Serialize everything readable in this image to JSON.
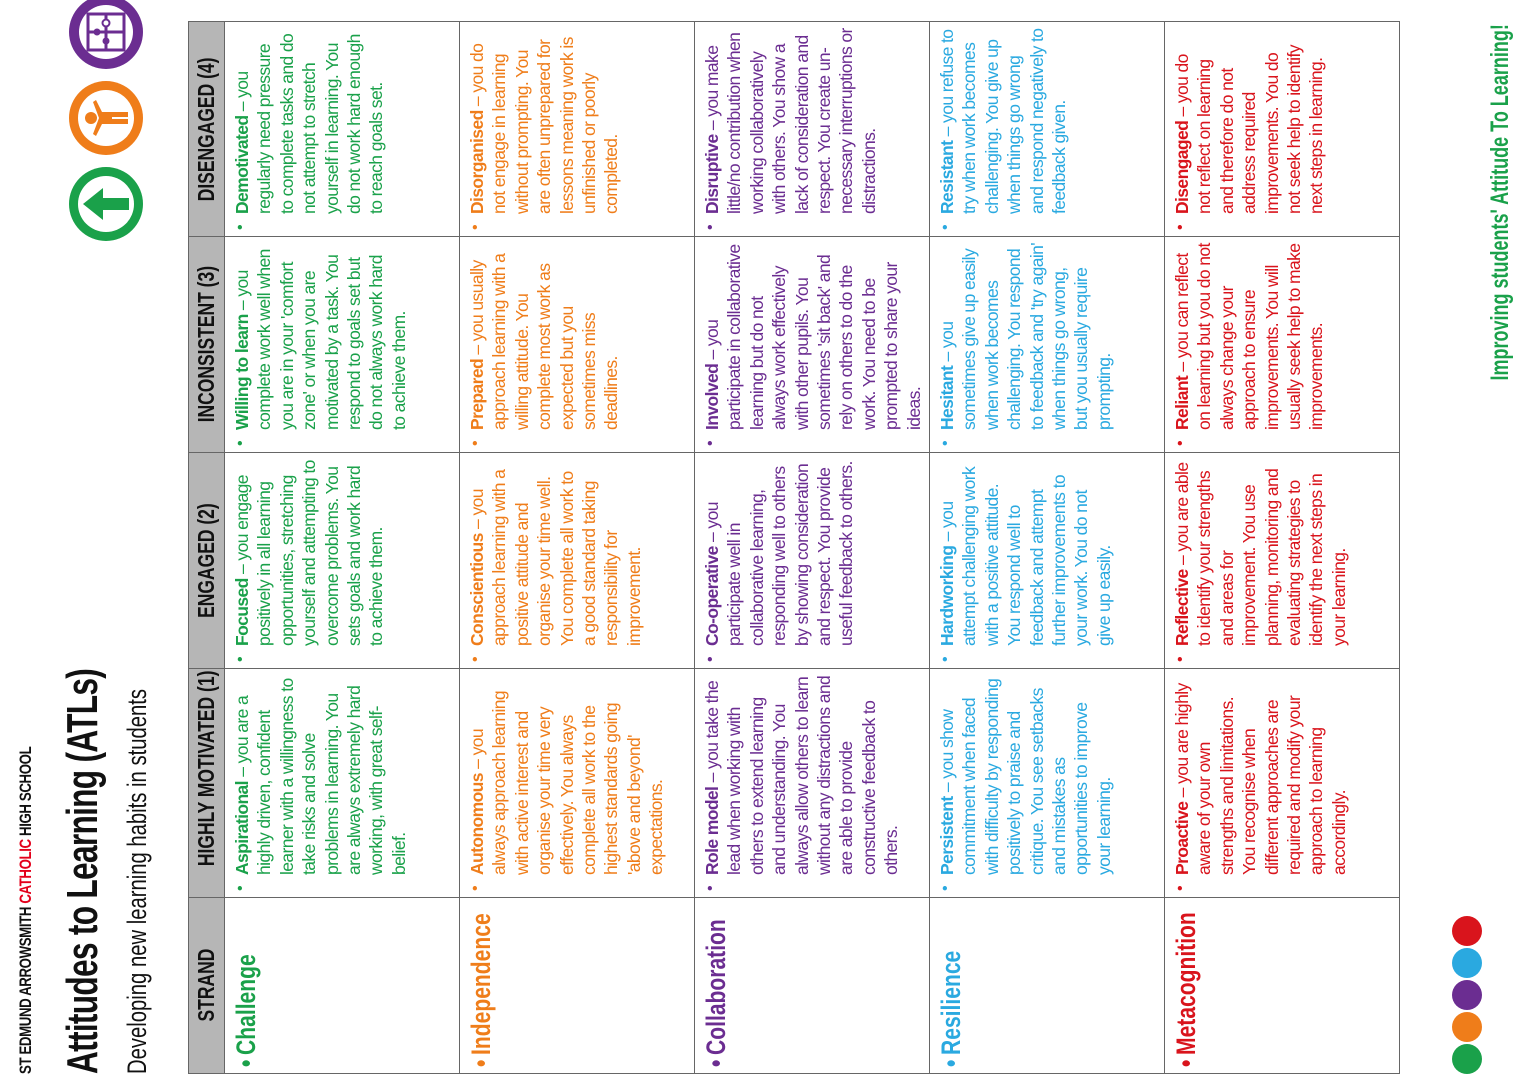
{
  "header": {
    "school_prefix": "ST EDMUND ARROWSMITH ",
    "school_accent": "CATHOLIC",
    "school_suffix": " HIGH SCHOOL",
    "title": "Attitudes to Learning (ATLs)",
    "subtitle": "Developing new learning habits in students"
  },
  "columns": [
    "STRAND",
    "HIGHLY MOTIVATED (1)",
    "ENGAGED (2)",
    "INCONSISTENT (3)",
    "DISENGAGED (4)"
  ],
  "bullet": "•",
  "dash": " – ",
  "rows": [
    {
      "strand": "Challenge",
      "cells": [
        {
          "term": "Aspirational",
          "text": "you are a highly driven, confident learner with a willingness to take risks and solve problems in learning. You are always extremely hard working, with great self-belief."
        },
        {
          "term": "Focused",
          "text": "you engage positively in all learning opportunities, stretching yourself and attempting to overcome problems. You sets goals and work hard to achieve them."
        },
        {
          "term": "Willing to learn",
          "text": "you complete work well when you are in your 'comfort zone' or when you are motivated by a task. You respond to goals set but do not always work hard to achieve them."
        },
        {
          "term": "Demotivated",
          "text": "you regularly need pressure to complete tasks and do not attempt to stretch yourself in learning. You do not work hard enough to reach goals set."
        }
      ]
    },
    {
      "strand": "Independence",
      "cells": [
        {
          "term": "Autonomous",
          "text": "you always approach learning with active interest and organise your time very effectively. You always complete all work to the highest standards going 'above and beyond' expectations."
        },
        {
          "term": "Conscientious",
          "text": "you approach learning with a positive attitude and organise your time well. You complete all work to a good standard taking responsibility for improvement."
        },
        {
          "term": "Prepared",
          "text": "you usually approach learning with a willing attitude. You complete most work as expected but you sometimes miss deadlines."
        },
        {
          "term": "Disorganised",
          "text": "you do not engage in learning without prompting. You are often unprepared for lessons meaning work is unfinished or poorly completed."
        }
      ]
    },
    {
      "strand": "Collaboration",
      "cells": [
        {
          "term": "Role model",
          "text": "you take the lead when working with others to extend learning and understanding. You always allow others to learn without any distractions and are able to provide constructive feedback to others."
        },
        {
          "term": "Co-operative",
          "text": "you participate well in collaborative learning, responding well to others by showing consideration and respect. You provide useful feedback to others."
        },
        {
          "term": "Involved",
          "text": "you participate in collaborative learning but do not always work effectively with other pupils. You sometimes 'sit back' and rely on others to do the work. You need to be prompted to share your ideas."
        },
        {
          "term": "Disruptive",
          "text": "you make little/no contribution when working collaboratively with others. You show a lack of consideration and respect. You create un-necessary interruptions or distractions."
        }
      ]
    },
    {
      "strand": "Resilience",
      "cells": [
        {
          "term": "Persistent",
          "text": "you show commitment when faced with difficulty by responding positively to praise and critique. You see setbacks and mistakes as opportunities to improve your learning."
        },
        {
          "term": "Hardworking",
          "text": "you attempt challenging work with a positive attitude. You respond well to feedback and attempt further improvements to your work. You do not give up easily."
        },
        {
          "term": "Hesitant",
          "text": "you sometimes give up easily when work becomes challenging. You respond to feedback and 'try again' when things go wrong, but you usually require prompting."
        },
        {
          "term": "Resistant",
          "text": "you refuse to try when work becomes challenging. You give up when things go wrong and respond negatively to feedback given."
        }
      ]
    },
    {
      "strand": "Metacognition",
      "cells": [
        {
          "term": "Proactive",
          "text": "you are highly aware of your own strengths and limitations. You recognise when different approaches are required and modify your approach to learning accordingly."
        },
        {
          "term": "Reflective",
          "text": "you are able to identify your strengths and areas for improvement. You use planning, monitoring and evaluating strategies to identify the next steps in your learning."
        },
        {
          "term": "Reliant",
          "text": "you can reflect on learning but you do not always change your approach to ensure improvements. You will usually seek help to make improvements."
        },
        {
          "term": "Disengaged",
          "text": "you do not reflect on learning and therefore do not address required improvements. You do not seek help to identify next steps in learning."
        }
      ]
    }
  ],
  "footer": "Improving students' Attitude To Learning!",
  "logos": [
    "challenge-arrow-icon",
    "independence-person-icon",
    "collaboration-puzzle-icon",
    "resilience-target-icon",
    "metacognition-cycle-icon"
  ],
  "colors": {
    "challenge": "#1aa14a",
    "independence": "#ef7d1a",
    "collaboration": "#6b2d91",
    "resilience": "#2aa9e0",
    "metacognition": "#d9141c"
  }
}
